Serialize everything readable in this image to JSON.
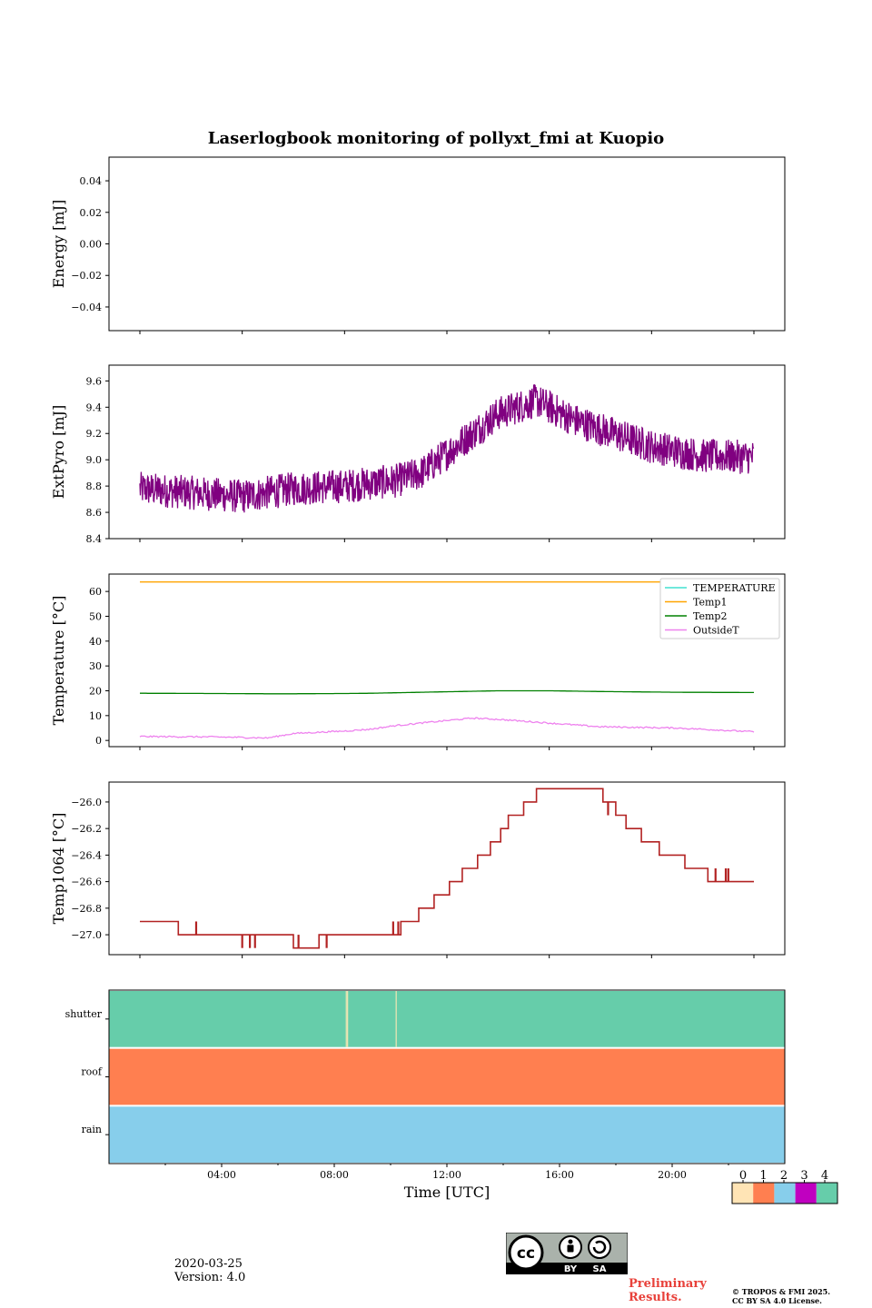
{
  "title": "Laserlogbook monitoring of pollyxt_fmi at Kuopio",
  "chart_data": [
    {
      "type": "line",
      "id": "energy",
      "ylabel": "Energy [mJ]",
      "ylim": [
        -0.055,
        0.055
      ],
      "yticks": [
        0.04,
        0.02,
        0.0,
        -0.02,
        -0.04
      ],
      "ytick_labels": [
        "0.04",
        "0.02",
        "0.00",
        "−0.02",
        "−0.04"
      ],
      "series": []
    },
    {
      "type": "line",
      "id": "extpyro",
      "ylabel": "ExtPyro [mJ]",
      "ylim": [
        8.4,
        9.72
      ],
      "yticks": [
        9.6,
        9.4,
        9.2,
        9.0,
        8.8,
        8.6,
        8.4
      ],
      "ytick_labels": [
        "9.6",
        "9.4",
        "9.2",
        "9.0",
        "8.8",
        "8.6",
        "8.4"
      ],
      "x_hours": [
        0.0,
        2.0,
        4.0,
        6.0,
        8.0,
        10.0,
        11.0,
        12.0,
        14.0,
        15.5,
        17.0,
        20.0,
        22.0,
        24.0
      ],
      "series": [
        {
          "name": "ExtPyro",
          "color": "#800080",
          "values": [
            8.78,
            8.75,
            8.72,
            8.78,
            8.8,
            8.84,
            8.9,
            9.05,
            9.35,
            9.45,
            9.3,
            9.1,
            9.03,
            9.02
          ],
          "noise": 0.13
        }
      ]
    },
    {
      "type": "line",
      "id": "temperature",
      "ylabel": "Temperature [°C]",
      "ylim": [
        -2.5,
        67
      ],
      "yticks": [
        60,
        50,
        40,
        30,
        20,
        10,
        0
      ],
      "ytick_labels": [
        "60",
        "50",
        "40",
        "30",
        "20",
        "10",
        "0"
      ],
      "legend": [
        "TEMPERATURE",
        "Temp1",
        "Temp2",
        "OutsideT"
      ],
      "x_hours": [
        0.0,
        3.0,
        5.0,
        6.0,
        8.0,
        9.0,
        10.0,
        11.0,
        12.0,
        13.0,
        14.0,
        16.0,
        18.0,
        21.0,
        24.0
      ],
      "series": [
        {
          "name": "TEMPERATURE",
          "color": "#40e0d0",
          "values": []
        },
        {
          "name": "Temp1",
          "color": "#ffa500",
          "values": [
            63.8,
            63.8,
            63.8,
            63.8,
            63.8,
            63.8,
            63.8,
            63.8,
            63.8,
            63.8,
            63.8,
            63.8,
            63.8,
            63.8,
            63.8
          ]
        },
        {
          "name": "Temp2",
          "color": "#008000",
          "values": [
            19.0,
            18.9,
            18.8,
            18.8,
            18.9,
            19.0,
            19.2,
            19.4,
            19.6,
            19.8,
            20.0,
            20.0,
            19.7,
            19.4,
            19.3
          ]
        },
        {
          "name": "OutsideT",
          "color": "#ee82ee",
          "values": [
            1.6,
            1.4,
            1.0,
            2.8,
            3.8,
            4.5,
            6.0,
            7.0,
            8.0,
            9.0,
            8.5,
            7.0,
            5.5,
            5.0,
            3.5
          ]
        }
      ]
    },
    {
      "type": "line",
      "id": "temp1064",
      "ylabel": "Temp1064 [°C]",
      "ylim": [
        -27.15,
        -25.85
      ],
      "yticks": [
        -26.0,
        -26.2,
        -26.4,
        -26.6,
        -26.8,
        -27.0
      ],
      "ytick_labels": [
        "−26.0",
        "−26.2",
        "−26.4",
        "−26.6",
        "−26.8",
        "−27.0"
      ],
      "series": [
        {
          "name": "Temp1064",
          "color": "#b22222",
          "steps": [
            [
              0.0,
              -26.9
            ],
            [
              1.5,
              -27.0
            ],
            [
              6.0,
              -27.1
            ],
            [
              7.0,
              -27.0
            ],
            [
              10.0,
              -27.0
            ],
            [
              10.2,
              -26.9
            ],
            [
              10.9,
              -26.8
            ],
            [
              11.5,
              -26.7
            ],
            [
              12.1,
              -26.6
            ],
            [
              12.6,
              -26.5
            ],
            [
              13.2,
              -26.4
            ],
            [
              13.7,
              -26.3
            ],
            [
              14.1,
              -26.2
            ],
            [
              14.4,
              -26.1
            ],
            [
              15.0,
              -26.0
            ],
            [
              15.5,
              -25.9
            ],
            [
              18.1,
              -26.0
            ],
            [
              18.6,
              -26.1
            ],
            [
              19.0,
              -26.2
            ],
            [
              19.6,
              -26.3
            ],
            [
              20.3,
              -26.4
            ],
            [
              21.3,
              -26.5
            ],
            [
              22.2,
              -26.6
            ],
            [
              24.0,
              -26.6
            ]
          ],
          "glitches": [
            [
              2.2,
              -27.0,
              -26.9
            ],
            [
              4.0,
              -27.0,
              -27.1
            ],
            [
              4.3,
              -27.0,
              -27.1
            ],
            [
              4.5,
              -27.0,
              -27.1
            ],
            [
              6.2,
              -27.1,
              -27.0
            ],
            [
              7.3,
              -27.0,
              -27.1
            ],
            [
              9.9,
              -27.0,
              -26.9
            ],
            [
              10.1,
              -27.0,
              -26.9
            ],
            [
              18.3,
              -26.0,
              -26.1
            ],
            [
              22.5,
              -26.5,
              -26.6
            ],
            [
              22.9,
              -26.5,
              -26.6
            ],
            [
              23.0,
              -26.5,
              -26.6
            ]
          ]
        }
      ]
    },
    {
      "type": "heatmap",
      "id": "status",
      "rows": [
        "shutter",
        "roof",
        "rain"
      ],
      "row_values": [
        4,
        1,
        2
      ],
      "shutter_gaps_hours": [
        8.05,
        8.1,
        10.0
      ],
      "xlim_hours": [
        0,
        24
      ],
      "xticks_hours": [
        4,
        8,
        12,
        16,
        20
      ],
      "xtick_labels": [
        "04:00",
        "08:00",
        "12:00",
        "16:00",
        "20:00"
      ],
      "xlabel": "Time [UTC]"
    }
  ],
  "colorbar": {
    "labels": [
      "0",
      "1",
      "2",
      "3",
      "4"
    ],
    "colors": [
      "#ffe4b5",
      "#ff7f50",
      "#87ceeb",
      "#c000c0",
      "#66cdaa"
    ]
  },
  "info": {
    "date": "2020-03-25",
    "version": "Version: 4.0"
  },
  "license": {
    "cc_label": "cc",
    "by_label": "BY",
    "sa_label": "SA",
    "preliminary_line1": "Preliminary",
    "preliminary_line2": "Results.",
    "copyright_line1": "© TROPOS & FMI 2025.",
    "copyright_line2": "CC BY SA 4.0 License."
  }
}
